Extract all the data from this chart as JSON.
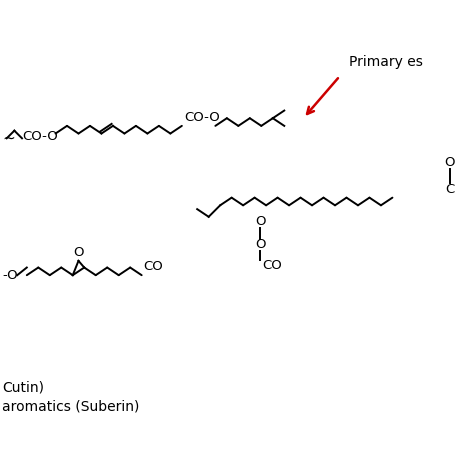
{
  "label1": "Cutin)",
  "label2": "aromatics (Suberin)",
  "bg_color": "#ffffff",
  "text_color": "#000000",
  "red_color": "#cc0000",
  "figsize": [
    4.69,
    4.69
  ],
  "dpi": 100,
  "annotation_text": "Primary es",
  "lw": 1.4,
  "amplitude": 8,
  "step": 12
}
